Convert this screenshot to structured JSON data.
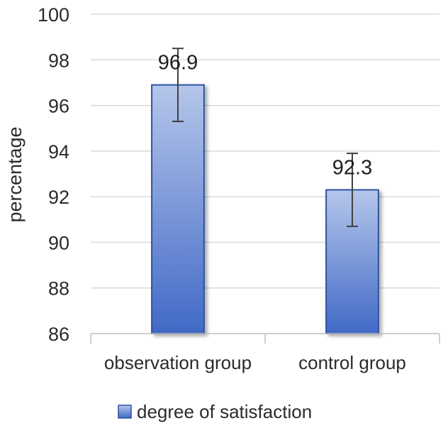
{
  "chart_data": {
    "type": "bar",
    "title": "",
    "xlabel": "",
    "ylabel": "percentage",
    "categories": [
      "observation group",
      "control group"
    ],
    "series": [
      {
        "name": "degree of satisfaction",
        "values": [
          96.9,
          92.3
        ],
        "error_low": [
          95.3,
          90.7
        ],
        "error_high": [
          98.5,
          93.9
        ],
        "color": "#4472C4"
      }
    ],
    "ylim": [
      86,
      100
    ],
    "yticks": [
      86,
      88,
      90,
      92,
      94,
      96,
      98,
      100
    ],
    "data_labels": [
      "96.9",
      "92.3"
    ],
    "grid": true,
    "legend": "bottom"
  }
}
